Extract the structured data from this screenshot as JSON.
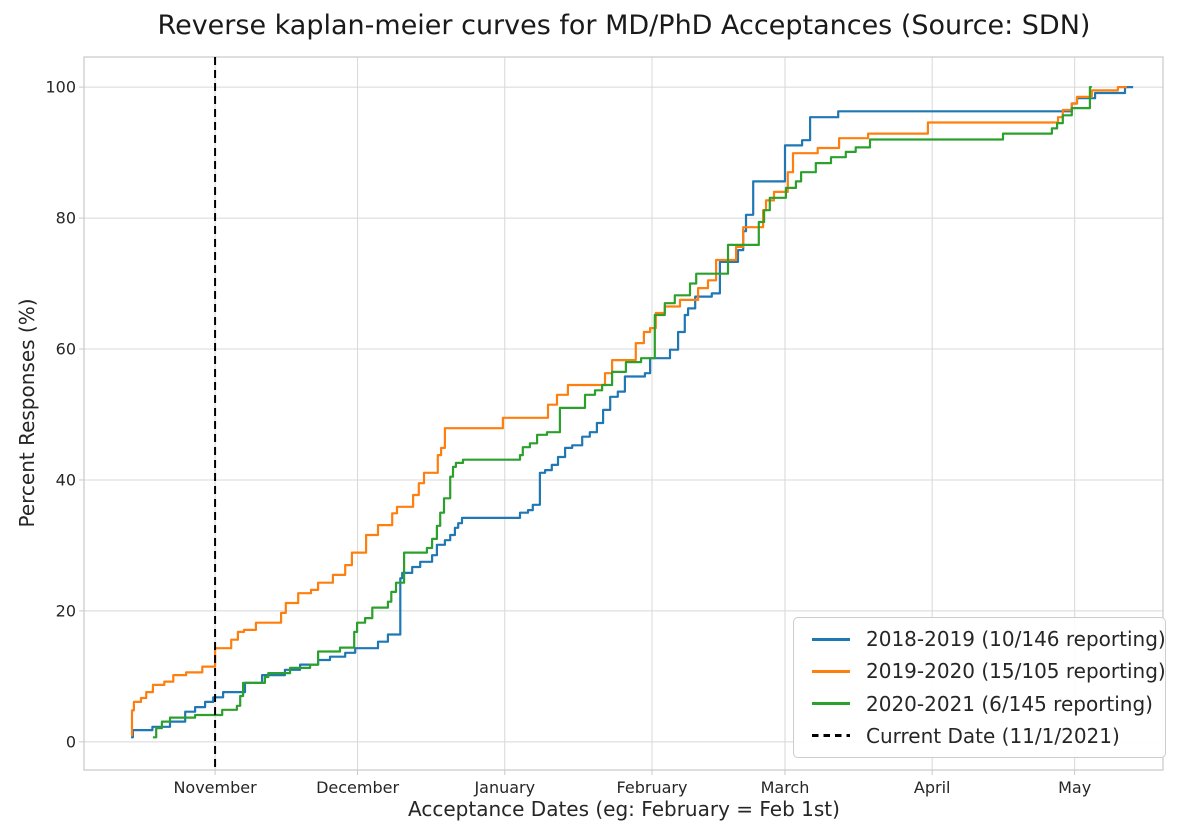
{
  "title": "Reverse kaplan-meier curves for MD/PhD Acceptances (Source: SDN)",
  "axes": {
    "xlabel": "Acceptance Dates (eg: February = Feb 1st)",
    "ylabel": "Percent Responses (%)"
  },
  "legend": {
    "position": "lower right",
    "entries": [
      {
        "label": "2018-2019 (10/146 reporting)",
        "color": "#1f77b4",
        "dashed": false
      },
      {
        "label": "2019-2020 (15/105 reporting)",
        "color": "#ff7f0e",
        "dashed": false
      },
      {
        "label": "2020-2021 (6/145 reporting)",
        "color": "#2ca02c",
        "dashed": false
      },
      {
        "label": "Current Date (11/1/2021)",
        "color": "#000000",
        "dashed": true
      }
    ]
  },
  "chart_data": {
    "type": "line",
    "step_mode": "post",
    "grid": true,
    "title": "Reverse kaplan-meier curves for MD/PhD Acceptances (Source: SDN)",
    "xlabel": "Acceptance Dates (eg: February = Feb 1st)",
    "ylabel": "Percent Responses (%)",
    "x_units": "days since Oct 1",
    "x_axis": {
      "range_days": [
        3.4,
        230.6
      ],
      "ticks": [
        {
          "day": 31,
          "label": "November"
        },
        {
          "day": 61,
          "label": "December"
        },
        {
          "day": 92,
          "label": "January"
        },
        {
          "day": 123,
          "label": "February"
        },
        {
          "day": 151,
          "label": "March"
        },
        {
          "day": 182,
          "label": "April"
        },
        {
          "day": 212,
          "label": "May"
        }
      ]
    },
    "y_axis": {
      "range": [
        -4.3,
        104.6
      ],
      "ticks": [
        {
          "value": 0,
          "label": "0"
        },
        {
          "value": 20,
          "label": "20"
        },
        {
          "value": 40,
          "label": "40"
        },
        {
          "value": 60,
          "label": "60"
        },
        {
          "value": 80,
          "label": "80"
        },
        {
          "value": 100,
          "label": "100"
        }
      ]
    },
    "current_date_line": {
      "day": 31,
      "label": "Current Date (11/1/2021)",
      "color": "#000000",
      "style": "dashed"
    },
    "series": [
      {
        "name": "2018-2019 (10/146 reporting)",
        "color": "#1f77b4",
        "points": [
          [
            13.3,
            0.7
          ],
          [
            13.7,
            1.8
          ],
          [
            17.8,
            2.3
          ],
          [
            21.5,
            3.1
          ],
          [
            24.7,
            4.6
          ],
          [
            26.8,
            5.3
          ],
          [
            28.9,
            6.1
          ],
          [
            30.6,
            6.8
          ],
          [
            32.7,
            7.6
          ],
          [
            37.3,
            9.0
          ],
          [
            40.9,
            10.2
          ],
          [
            45.7,
            11.0
          ],
          [
            48.9,
            11.8
          ],
          [
            52.7,
            12.5
          ],
          [
            55.2,
            13.0
          ],
          [
            58.4,
            13.6
          ],
          [
            60.5,
            14.3
          ],
          [
            65.3,
            15.3
          ],
          [
            67.4,
            16.4
          ],
          [
            70.0,
            25.0
          ],
          [
            70.4,
            25.8
          ],
          [
            72.5,
            26.7
          ],
          [
            74.2,
            27.5
          ],
          [
            76.7,
            28.5
          ],
          [
            77.7,
            30.1
          ],
          [
            79.4,
            30.8
          ],
          [
            80.5,
            31.6
          ],
          [
            81.5,
            32.7
          ],
          [
            82.2,
            33.4
          ],
          [
            83.0,
            34.2
          ],
          [
            95.2,
            35.0
          ],
          [
            96.9,
            35.4
          ],
          [
            97.9,
            36.2
          ],
          [
            99.4,
            41.1
          ],
          [
            100.5,
            41.5
          ],
          [
            101.9,
            42.3
          ],
          [
            103.2,
            43.5
          ],
          [
            104.7,
            44.9
          ],
          [
            106.2,
            45.3
          ],
          [
            108.3,
            46.6
          ],
          [
            109.9,
            47.3
          ],
          [
            111.4,
            48.7
          ],
          [
            112.7,
            50.7
          ],
          [
            114.2,
            52.7
          ],
          [
            115.8,
            53.5
          ],
          [
            117.3,
            55.8
          ],
          [
            121.5,
            56.3
          ],
          [
            122.6,
            58.6
          ],
          [
            126.8,
            59.9
          ],
          [
            128.5,
            62.6
          ],
          [
            129.9,
            65.2
          ],
          [
            130.6,
            66.2
          ],
          [
            132.1,
            68.0
          ],
          [
            135.6,
            68.5
          ],
          [
            137.3,
            73.3
          ],
          [
            141.1,
            75.1
          ],
          [
            142.2,
            78.0
          ],
          [
            142.8,
            80.5
          ],
          [
            144.3,
            85.6
          ],
          [
            151.0,
            91.1
          ],
          [
            154.6,
            91.9
          ],
          [
            156.3,
            95.4
          ],
          [
            162.2,
            96.3
          ],
          [
            211.4,
            97.5
          ],
          [
            212.5,
            98.3
          ],
          [
            216.3,
            99.1
          ],
          [
            222.6,
            100.0
          ],
          [
            224.3,
            100.0
          ]
        ]
      },
      {
        "name": "2019-2020 (15/105 reporting)",
        "color": "#ff7f0e",
        "points": [
          [
            13.3,
            1.0
          ],
          [
            13.5,
            4.8
          ],
          [
            13.9,
            6.1
          ],
          [
            15.4,
            6.7
          ],
          [
            16.5,
            7.6
          ],
          [
            17.9,
            8.7
          ],
          [
            20.3,
            9.2
          ],
          [
            22.2,
            10.2
          ],
          [
            24.9,
            10.6
          ],
          [
            28.3,
            11.5
          ],
          [
            31.0,
            14.3
          ],
          [
            34.4,
            15.6
          ],
          [
            35.8,
            16.8
          ],
          [
            37.1,
            17.1
          ],
          [
            39.6,
            18.2
          ],
          [
            44.9,
            19.7
          ],
          [
            45.9,
            21.2
          ],
          [
            48.5,
            22.7
          ],
          [
            51.2,
            23.2
          ],
          [
            52.7,
            24.3
          ],
          [
            55.8,
            25.5
          ],
          [
            58.4,
            27.0
          ],
          [
            59.8,
            28.9
          ],
          [
            62.8,
            31.6
          ],
          [
            65.3,
            33.1
          ],
          [
            68.3,
            34.9
          ],
          [
            69.3,
            35.9
          ],
          [
            72.7,
            37.7
          ],
          [
            73.9,
            39.5
          ],
          [
            75.0,
            41.1
          ],
          [
            77.9,
            43.8
          ],
          [
            78.6,
            44.9
          ],
          [
            79.4,
            47.9
          ],
          [
            91.6,
            49.5
          ],
          [
            101.1,
            51.5
          ],
          [
            103.0,
            53.0
          ],
          [
            105.3,
            54.5
          ],
          [
            113.1,
            56.3
          ],
          [
            114.6,
            58.3
          ],
          [
            119.6,
            60.9
          ],
          [
            121.3,
            62.6
          ],
          [
            122.6,
            63.2
          ],
          [
            123.8,
            65.5
          ],
          [
            125.7,
            66.5
          ],
          [
            128.9,
            67.5
          ],
          [
            132.7,
            69.3
          ],
          [
            134.8,
            70.5
          ],
          [
            136.5,
            73.6
          ],
          [
            140.7,
            75.6
          ],
          [
            142.2,
            78.6
          ],
          [
            146.4,
            81.2
          ],
          [
            147.0,
            82.7
          ],
          [
            148.7,
            84.0
          ],
          [
            151.6,
            87.0
          ],
          [
            152.7,
            89.9
          ],
          [
            157.9,
            90.7
          ],
          [
            162.4,
            92.2
          ],
          [
            168.5,
            92.9
          ],
          [
            181.1,
            94.6
          ],
          [
            208.5,
            95.4
          ],
          [
            209.5,
            96.5
          ],
          [
            211.4,
            97.5
          ],
          [
            212.5,
            98.5
          ],
          [
            215.6,
            99.5
          ],
          [
            221.1,
            100.0
          ],
          [
            223.0,
            100.0
          ]
        ]
      },
      {
        "name": "2020-2021 (6/145 reporting)",
        "color": "#2ca02c",
        "points": [
          [
            17.9,
            0.7
          ],
          [
            18.6,
            2.1
          ],
          [
            19.8,
            3.1
          ],
          [
            21.5,
            3.7
          ],
          [
            26.8,
            4.1
          ],
          [
            32.5,
            4.9
          ],
          [
            35.6,
            5.5
          ],
          [
            36.3,
            7.0
          ],
          [
            36.9,
            9.0
          ],
          [
            41.5,
            9.9
          ],
          [
            42.2,
            10.5
          ],
          [
            46.8,
            11.3
          ],
          [
            51.0,
            11.8
          ],
          [
            52.7,
            13.8
          ],
          [
            57.3,
            14.4
          ],
          [
            60.3,
            16.8
          ],
          [
            60.9,
            18.2
          ],
          [
            62.6,
            18.9
          ],
          [
            64.1,
            20.5
          ],
          [
            67.4,
            21.4
          ],
          [
            68.1,
            22.9
          ],
          [
            69.1,
            24.3
          ],
          [
            70.8,
            28.9
          ],
          [
            75.6,
            29.6
          ],
          [
            76.7,
            31.0
          ],
          [
            77.7,
            33.0
          ],
          [
            78.4,
            35.0
          ],
          [
            79.2,
            37.2
          ],
          [
            80.5,
            40.5
          ],
          [
            81.1,
            42.0
          ],
          [
            81.7,
            42.6
          ],
          [
            83.2,
            43.1
          ],
          [
            95.2,
            43.8
          ],
          [
            95.8,
            45.0
          ],
          [
            97.3,
            45.6
          ],
          [
            98.8,
            46.9
          ],
          [
            100.9,
            47.3
          ],
          [
            103.6,
            51.0
          ],
          [
            108.9,
            53.0
          ],
          [
            111.0,
            53.7
          ],
          [
            112.5,
            54.5
          ],
          [
            114.6,
            56.5
          ],
          [
            117.5,
            58.0
          ],
          [
            120.7,
            58.6
          ],
          [
            123.6,
            65.2
          ],
          [
            125.7,
            67.0
          ],
          [
            127.8,
            68.2
          ],
          [
            131.0,
            70.0
          ],
          [
            132.3,
            71.5
          ],
          [
            139.0,
            75.9
          ],
          [
            145.5,
            79.4
          ],
          [
            146.6,
            81.2
          ],
          [
            147.8,
            83.1
          ],
          [
            151.2,
            84.6
          ],
          [
            153.3,
            85.6
          ],
          [
            154.4,
            87.0
          ],
          [
            157.5,
            88.4
          ],
          [
            160.7,
            89.3
          ],
          [
            163.8,
            90.1
          ],
          [
            165.9,
            90.8
          ],
          [
            168.9,
            92.0
          ],
          [
            196.9,
            92.9
          ],
          [
            207.2,
            93.7
          ],
          [
            208.3,
            94.5
          ],
          [
            209.5,
            95.7
          ],
          [
            211.4,
            96.8
          ],
          [
            215.2,
            100.0
          ],
          [
            215.6,
            100.0
          ]
        ]
      }
    ]
  }
}
